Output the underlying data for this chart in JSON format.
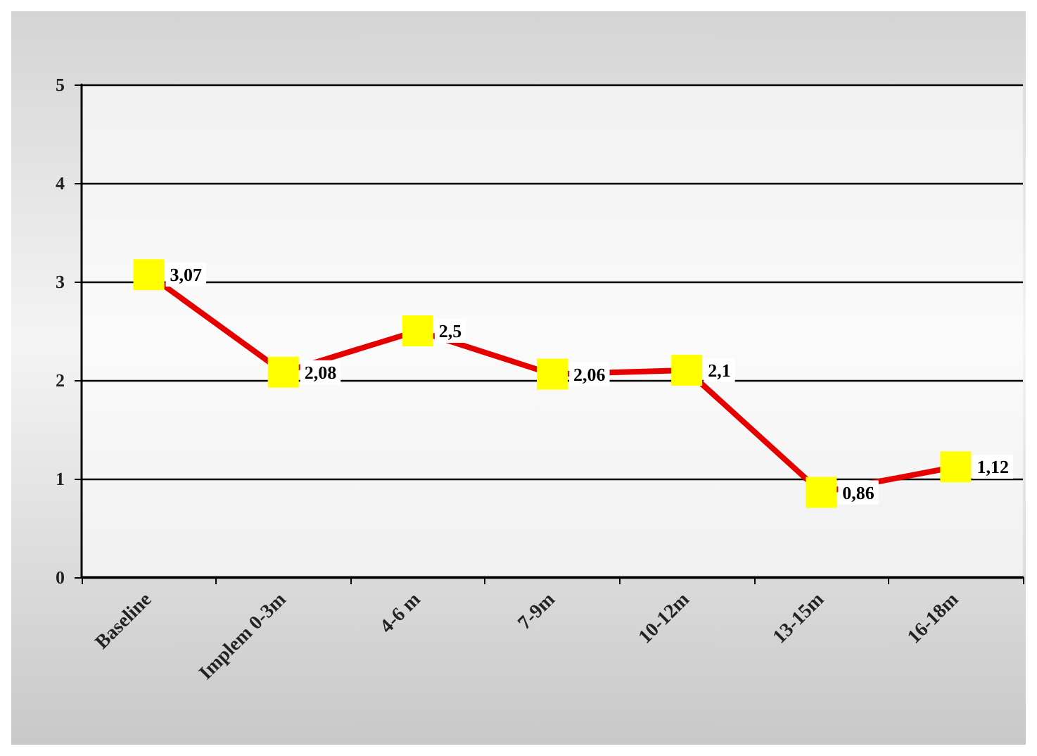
{
  "chart_data": {
    "type": "line",
    "categories": [
      "Baseline",
      "Implem 0-3m",
      "4-6 m",
      "7-9m",
      "10-12m",
      "13-15m",
      "16-18m"
    ],
    "series": [
      {
        "color": "#e60000",
        "values": [
          3.07,
          2.08,
          2.5,
          2.06,
          2.1,
          0.86,
          1.12
        ],
        "value_labels": [
          "3,07",
          "2,08",
          "2,5",
          "2,06",
          "2,1",
          "0,86",
          "1,12"
        ]
      }
    ],
    "ylim": [
      0,
      5
    ],
    "yticks": [
      0,
      1,
      2,
      3,
      4,
      5
    ],
    "grid": "y",
    "marker": "square",
    "line_style": "solid"
  }
}
